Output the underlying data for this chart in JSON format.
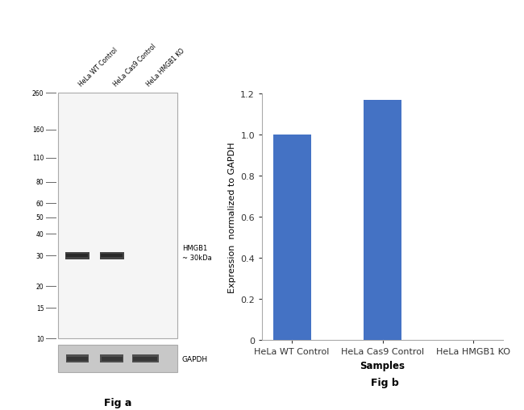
{
  "fig_a_label": "Fig a",
  "fig_b_label": "Fig b",
  "mw_markers": [
    260,
    160,
    110,
    80,
    60,
    50,
    40,
    30,
    20,
    15,
    10
  ],
  "lane_labels": [
    "HeLa WT Control",
    "HeLa Cas9 Control",
    "HeLa HMGB1 KO"
  ],
  "hmgb1_annotation": "HMGB1\n~ 30kDa",
  "gapdh_annotation": "GAPDH",
  "bar_categories": [
    "HeLa WT Control",
    "HeLa Cas9 Control",
    "HeLa HMGB1 KO"
  ],
  "bar_values": [
    1.0,
    1.17,
    0.0
  ],
  "bar_color": "#4472C4",
  "bar_ylabel": "Expression  normalized to GAPDH",
  "bar_xlabel": "Samples",
  "bar_ylim": [
    0,
    1.2
  ],
  "bar_yticks": [
    0,
    0.2,
    0.4,
    0.6,
    0.8,
    1.0,
    1.2
  ],
  "bg_color": "#ffffff",
  "blot_main_bg": "#f5f5f5",
  "blot_gapdh_bg": "#c8c8c8",
  "band_color_hmgb1": "#2a2a2a",
  "band_color_gapdh": "#3a3a3a",
  "text_color": "#000000",
  "mw_line_color": "#666666",
  "spine_color": "#aaaaaa"
}
